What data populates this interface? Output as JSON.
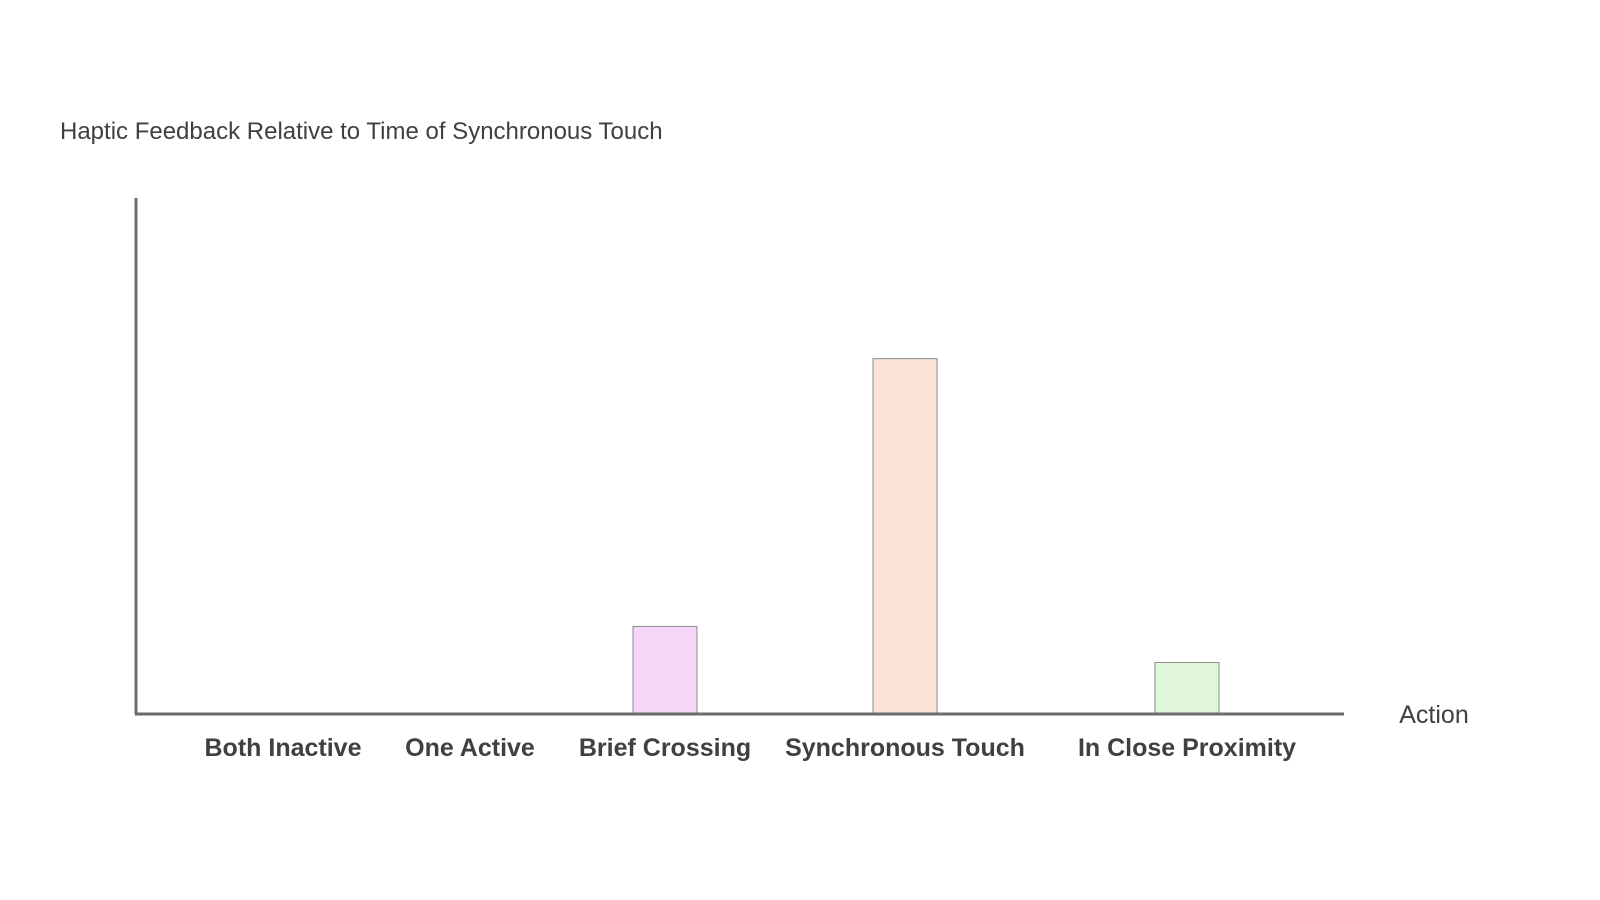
{
  "chart_data": {
    "type": "bar",
    "title": "Haptic Feedback Relative to Time of Synchronous Touch",
    "xlabel": "Action",
    "ylabel": "",
    "categories": [
      "Both Inactive",
      "One Active",
      "Brief Crossing",
      "Synchronous Touch",
      "In Close Proximity"
    ],
    "values": [
      0,
      0,
      17,
      69,
      10
    ],
    "colors": [
      "#f7d6f7",
      "#f7d6f7",
      "#f7d6f7",
      "#f9e3d6",
      "#e0f8d9"
    ],
    "ylim": [
      0,
      100
    ],
    "grid": false,
    "legend": "none"
  }
}
